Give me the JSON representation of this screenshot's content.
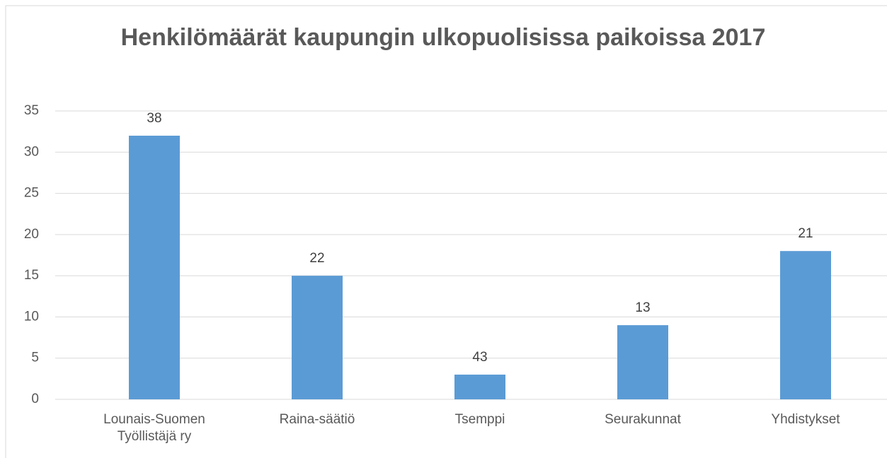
{
  "chart_data": {
    "type": "bar",
    "title": "Henkilömäärät kaupungin ulkopuolisissa paikoissa 2017",
    "categories": [
      "Lounais-Suomen Työllistäjä ry",
      "Raina-säätiö",
      "Tsemppi",
      "Seurakunnat",
      "Yhdistykset"
    ],
    "values": [
      32,
      15,
      3,
      9,
      18
    ],
    "annotations": [
      "38",
      "22",
      "43",
      "13",
      "21"
    ],
    "color": "#5b9bd5",
    "ylim": [
      0,
      35
    ],
    "yticks": [
      0,
      5,
      10,
      15,
      20,
      25,
      30,
      35
    ],
    "grid": true
  }
}
